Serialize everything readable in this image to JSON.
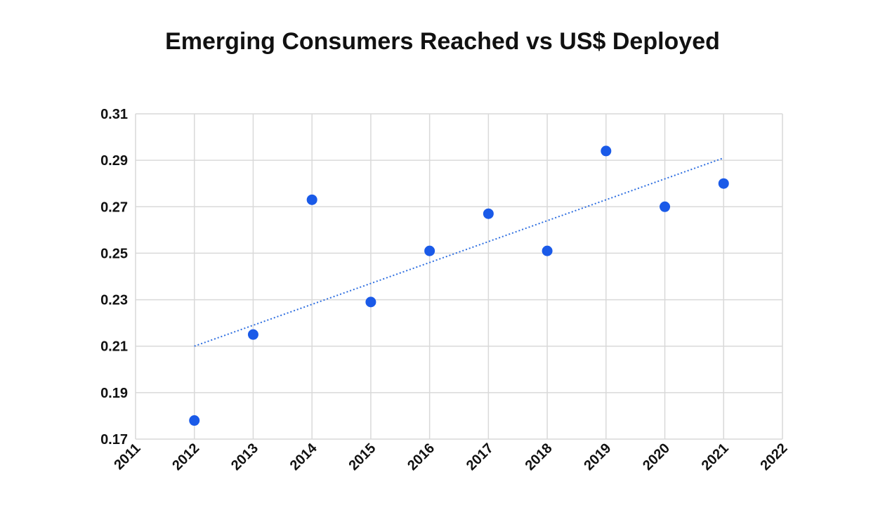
{
  "chart_data": {
    "type": "scatter",
    "title": "Emerging Consumers Reached vs US$ Deployed",
    "xlabel": "",
    "ylabel": "",
    "xlim": [
      2011,
      2022
    ],
    "ylim": [
      0.17,
      0.31
    ],
    "x_ticks": [
      "2011",
      "2012",
      "2013",
      "2014",
      "2015",
      "2016",
      "2017",
      "2018",
      "2019",
      "2020",
      "2021",
      "2022"
    ],
    "y_ticks": [
      "0.17",
      "0.19",
      "0.21",
      "0.23",
      "0.25",
      "0.27",
      "0.29",
      "0.31"
    ],
    "grid": true,
    "series": [
      {
        "name": "Emerging Consumers Reached vs US$ Deployed",
        "x": [
          2012,
          2013,
          2014,
          2015,
          2016,
          2017,
          2018,
          2019,
          2020,
          2021
        ],
        "y": [
          0.178,
          0.215,
          0.273,
          0.229,
          0.251,
          0.267,
          0.251,
          0.294,
          0.27,
          0.28
        ]
      }
    ],
    "trendline": {
      "style": "dotted",
      "x": [
        2012,
        2021
      ],
      "y": [
        0.21,
        0.291
      ]
    },
    "colors": {
      "point": "#1a5ae8",
      "trend": "#2f6fe0",
      "grid": "#d9d9d9"
    }
  }
}
